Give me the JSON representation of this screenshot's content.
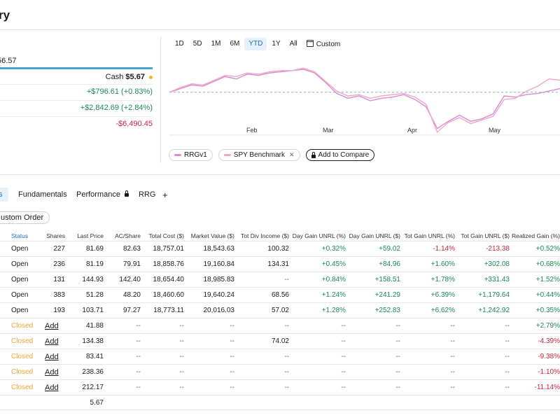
{
  "header": {
    "title": "ry"
  },
  "summary": {
    "total_value": "56.57",
    "cash_label": "Cash",
    "cash_value": "$5.67",
    "gains": [
      "+$796.61 (+0.83%)",
      "+$2,842.69 (+2.84%)",
      "-$6,490.45"
    ]
  },
  "chart": {
    "ranges": [
      "1D",
      "5D",
      "1M",
      "6M",
      "YTD",
      "1Y",
      "All"
    ],
    "active_range": "YTD",
    "custom_label": "Custom",
    "months": [
      "Feb",
      "Mar",
      "Apr",
      "May"
    ],
    "legend": {
      "rrg": "RRGv1",
      "spy": "SPY Benchmark",
      "compare": "Add to Compare"
    },
    "colors": {
      "rrg": "#d98ad8",
      "spy": "#f2a6c3",
      "baseline": "#7fb8b0"
    }
  },
  "chart_data": {
    "type": "line",
    "x": [
      "Jan 2",
      "Jan 6",
      "Jan 10",
      "Jan 14",
      "Jan 18",
      "Jan 22",
      "Jan 26",
      "Jan 30",
      "Feb 3",
      "Feb 7",
      "Feb 11",
      "Feb 15",
      "Feb 19",
      "Feb 23",
      "Feb 27",
      "Mar 3",
      "Mar 7",
      "Mar 11",
      "Mar 15",
      "Mar 19",
      "Mar 23",
      "Mar 27",
      "Mar 31",
      "Apr 4",
      "Apr 8",
      "Apr 12",
      "Apr 16",
      "Apr 20",
      "Apr 24",
      "Apr 28",
      "May 2",
      "May 6",
      "May 10",
      "May 14",
      "May 18",
      "May 22"
    ],
    "series": [
      {
        "name": "RRGv1",
        "values": [
          0.0,
          0.6,
          1.2,
          1.0,
          1.8,
          2.6,
          2.2,
          3.0,
          2.8,
          3.2,
          3.4,
          3.6,
          3.8,
          3.2,
          1.6,
          -0.2,
          -1.0,
          -0.6,
          -1.4,
          -1.0,
          -0.8,
          -0.4,
          -1.2,
          -2.4,
          -6.0,
          -4.8,
          -3.8,
          -4.8,
          -4.4,
          -3.6,
          -0.6,
          -0.8,
          -0.4,
          -0.2,
          0.2,
          0.6
        ]
      },
      {
        "name": "SPY Benchmark",
        "values": [
          0.0,
          0.8,
          1.4,
          1.2,
          2.0,
          2.8,
          2.6,
          3.2,
          3.0,
          3.4,
          3.6,
          3.6,
          4.0,
          3.4,
          1.8,
          0.2,
          -0.6,
          -0.4,
          -1.0,
          -0.6,
          -0.4,
          -0.2,
          -0.8,
          -2.0,
          -6.6,
          -5.0,
          -4.2,
          -5.2,
          -4.6,
          -4.0,
          -1.2,
          -1.0,
          0.2,
          1.0,
          2.2,
          2.0
        ]
      }
    ]
  },
  "tabs": [
    "s",
    "Fundamentals",
    "Performance",
    "RRG"
  ],
  "custom_order_label": "ustom Order",
  "table": {
    "headers": [
      "Status",
      "Shares",
      "Last Price",
      "AC/Share",
      "Total Cost ($)",
      "Market Value ($)",
      "Tot Div Income ($)",
      "Day Gain UNRL (%)",
      "Day Gain UNRL ($)",
      "Tot Gain UNRL (%)",
      "Tot Gain UNRL ($)",
      "Realized Gain (%)"
    ],
    "rows": [
      {
        "status": "Open",
        "shares": "227",
        "last": "81.69",
        "ac": "82.63",
        "cost": "18,757.01",
        "mv": "18,543.63",
        "div": "100.32",
        "dgp": "+0.32%",
        "dgd": "+59.02",
        "tgp": "-1.14%",
        "tgd": "-213.38",
        "rg": "+0.52%"
      },
      {
        "status": "Open",
        "shares": "236",
        "last": "81.19",
        "ac": "79.91",
        "cost": "18,858.76",
        "mv": "19,160.84",
        "div": "134.31",
        "dgp": "+0.45%",
        "dgd": "+84.96",
        "tgp": "+1.60%",
        "tgd": "+302.08",
        "rg": "+0.68%"
      },
      {
        "status": "Open",
        "shares": "131",
        "last": "144.93",
        "ac": "142.40",
        "cost": "18,654.40",
        "mv": "18,985.83",
        "div": "--",
        "dgp": "+0.84%",
        "dgd": "+158.51",
        "tgp": "+1.78%",
        "tgd": "+331.43",
        "rg": "+1.52%"
      },
      {
        "status": "Open",
        "shares": "383",
        "last": "51.28",
        "ac": "48.20",
        "cost": "18,460.60",
        "mv": "19,640.24",
        "div": "68.56",
        "dgp": "+1.24%",
        "dgd": "+241.29",
        "tgp": "+6.39%",
        "tgd": "+1,179.64",
        "rg": "+0.44%"
      },
      {
        "status": "Open",
        "shares": "193",
        "last": "103.71",
        "ac": "97.27",
        "cost": "18,773.11",
        "mv": "20,016.03",
        "div": "57.02",
        "dgp": "+1.28%",
        "dgd": "+252.83",
        "tgp": "+6.62%",
        "tgd": "+1,242.92",
        "rg": "+0.35%"
      },
      {
        "status": "Closed",
        "shares": "Add",
        "last": "41.88",
        "ac": "--",
        "cost": "--",
        "mv": "--",
        "div": "--",
        "dgp": "--",
        "dgd": "--",
        "tgp": "--",
        "tgd": "--",
        "rg": "+2.79%"
      },
      {
        "status": "Closed",
        "shares": "Add",
        "last": "134.38",
        "ac": "--",
        "cost": "--",
        "mv": "--",
        "div": "74.02",
        "dgp": "--",
        "dgd": "--",
        "tgp": "--",
        "tgd": "--",
        "rg": "-4.39%"
      },
      {
        "status": "Closed",
        "shares": "Add",
        "last": "83.41",
        "ac": "--",
        "cost": "--",
        "mv": "--",
        "div": "--",
        "dgp": "--",
        "dgd": "--",
        "tgp": "--",
        "tgd": "--",
        "rg": "-9.38%"
      },
      {
        "status": "Closed",
        "shares": "Add",
        "last": "238.36",
        "ac": "--",
        "cost": "--",
        "mv": "--",
        "div": "--",
        "dgp": "--",
        "dgd": "--",
        "tgp": "--",
        "tgd": "--",
        "rg": "-1.10%"
      },
      {
        "status": "Closed",
        "shares": "Add",
        "last": "212.17",
        "ac": "--",
        "cost": "--",
        "mv": "--",
        "div": "--",
        "dgp": "--",
        "dgd": "--",
        "tgp": "--",
        "tgd": "--",
        "rg": "-11.14%"
      }
    ],
    "cash_row": {
      "last": "5.67"
    }
  }
}
